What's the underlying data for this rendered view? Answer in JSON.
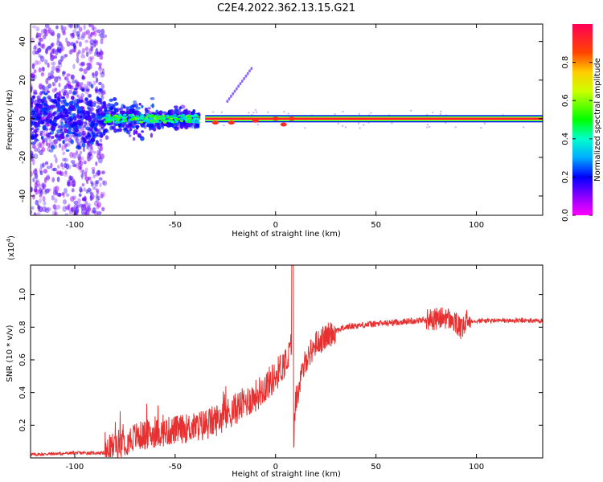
{
  "title": "C2E4.2022.362.13.15.G21",
  "colors": {
    "signal_line": "#e83030",
    "spectrogram_scatter": "#7a00e8",
    "axes": "#000000"
  },
  "chart_data": [
    {
      "type": "heatmap",
      "xlabel": "Height of straight line (km)",
      "ylabel": "Frequency (Hz)",
      "xlim": [
        -122,
        133
      ],
      "ylim": [
        -50,
        49
      ],
      "xticks": [
        -100,
        -50,
        0,
        50,
        100
      ],
      "yticks": [
        -40,
        -20,
        0,
        20,
        40
      ],
      "colorbar": {
        "label": "Normalized spectral amplitude",
        "colormap": "rainbow",
        "range": [
          0,
          1
        ],
        "ticks": [
          0.0,
          0.2,
          0.4,
          0.6,
          0.8
        ]
      },
      "features": [
        {
          "desc": "broadband scatter",
          "x_range": [
            -122,
            -85
          ],
          "freq_range": [
            -50,
            49
          ],
          "amplitude": 0.15
        },
        {
          "desc": "wide band",
          "x_range": [
            -122,
            -38
          ],
          "freq_range": [
            -7,
            8
          ],
          "amplitude": 0.3
        },
        {
          "desc": "narrow carrier",
          "x_range": [
            -85,
            -38
          ],
          "freq_range": [
            -2,
            3
          ],
          "amplitude": 0.5
        },
        {
          "desc": "weak drifting trace",
          "x_range": [
            -24,
            -12
          ],
          "freq_range": [
            9,
            26
          ],
          "amplitude": 0.2
        },
        {
          "desc": "stable carrier",
          "x_range": [
            -35,
            133
          ],
          "freq_center": 0,
          "amplitude": 1.0
        }
      ]
    },
    {
      "type": "line",
      "xlabel": "Height of straight line (km)",
      "ylabel": "SNR (10 * v/v)",
      "y_scale_label": "(x10",
      "y_scale_exp": "4",
      "y_scale_close": ")",
      "xlim": [
        -122,
        133
      ],
      "ylim": [
        0.0,
        1.18
      ],
      "xticks": [
        -100,
        -50,
        0,
        50,
        100
      ],
      "yticks": [
        0.2,
        0.4,
        0.6,
        0.8,
        1.0
      ],
      "series": [
        {
          "x": [
            -122,
            -100,
            -85,
            -80,
            -75,
            -70,
            -65,
            -60,
            -55,
            -50,
            -45,
            -40,
            -35,
            -30,
            -25,
            -20,
            -15,
            -10,
            -5,
            0,
            3,
            6,
            8,
            9,
            10,
            12,
            15,
            20,
            25,
            30,
            35,
            40,
            50,
            60,
            70,
            80,
            85,
            90,
            93,
            95,
            100,
            110,
            120,
            133
          ],
          "y": [
            0.02,
            0.03,
            0.03,
            0.08,
            0.1,
            0.13,
            0.14,
            0.15,
            0.16,
            0.17,
            0.18,
            0.19,
            0.2,
            0.23,
            0.26,
            0.3,
            0.34,
            0.38,
            0.44,
            0.5,
            0.56,
            0.6,
            0.7,
            0.1,
            0.35,
            0.45,
            0.6,
            0.7,
            0.74,
            0.78,
            0.8,
            0.81,
            0.82,
            0.83,
            0.84,
            0.85,
            0.86,
            0.82,
            0.78,
            0.84,
            0.84,
            0.84,
            0.84,
            0.84
          ]
        }
      ]
    }
  ]
}
